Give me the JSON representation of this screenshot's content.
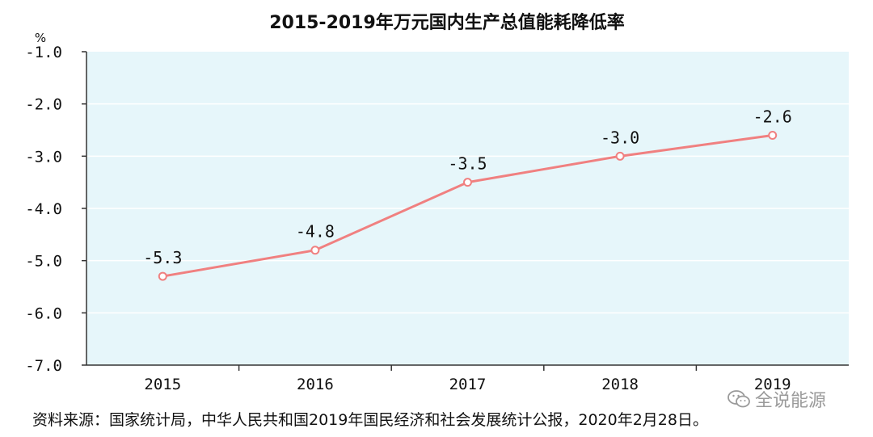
{
  "chart_data": {
    "type": "line",
    "title": "2015-2019年万元国内生产总值能耗降低率",
    "ylabel": "%",
    "xlabel": "",
    "categories": [
      "2015",
      "2016",
      "2017",
      "2018",
      "2019"
    ],
    "series": [
      {
        "name": "万元国内生产总值能耗降低率",
        "values": [
          -5.3,
          -4.8,
          -3.5,
          -3.0,
          -2.6
        ],
        "data_labels": [
          "-5.3",
          "-4.8",
          "-3.5",
          "-3.0",
          "-2.6"
        ]
      }
    ],
    "ylim": [
      -7.0,
      -1.0
    ],
    "yticks": [
      -1.0,
      -2.0,
      -3.0,
      -4.0,
      -5.0,
      -6.0,
      -7.0
    ],
    "ytick_labels": [
      "-1.0",
      "-2.0",
      "-3.0",
      "-4.0",
      "-5.0",
      "-6.0",
      "-7.0"
    ],
    "grid": true,
    "colors": {
      "line": "#f08080",
      "plot_bg": "#e6f6fa",
      "axis": "#333333",
      "grid": "#ffffff"
    }
  },
  "source": "资料来源：国家统计局，中华人民共和国2019年国民经济和社会发展统计公报，2020年2月28日。",
  "watermark": {
    "text": "全说能源",
    "icon": "wechat-icon"
  }
}
